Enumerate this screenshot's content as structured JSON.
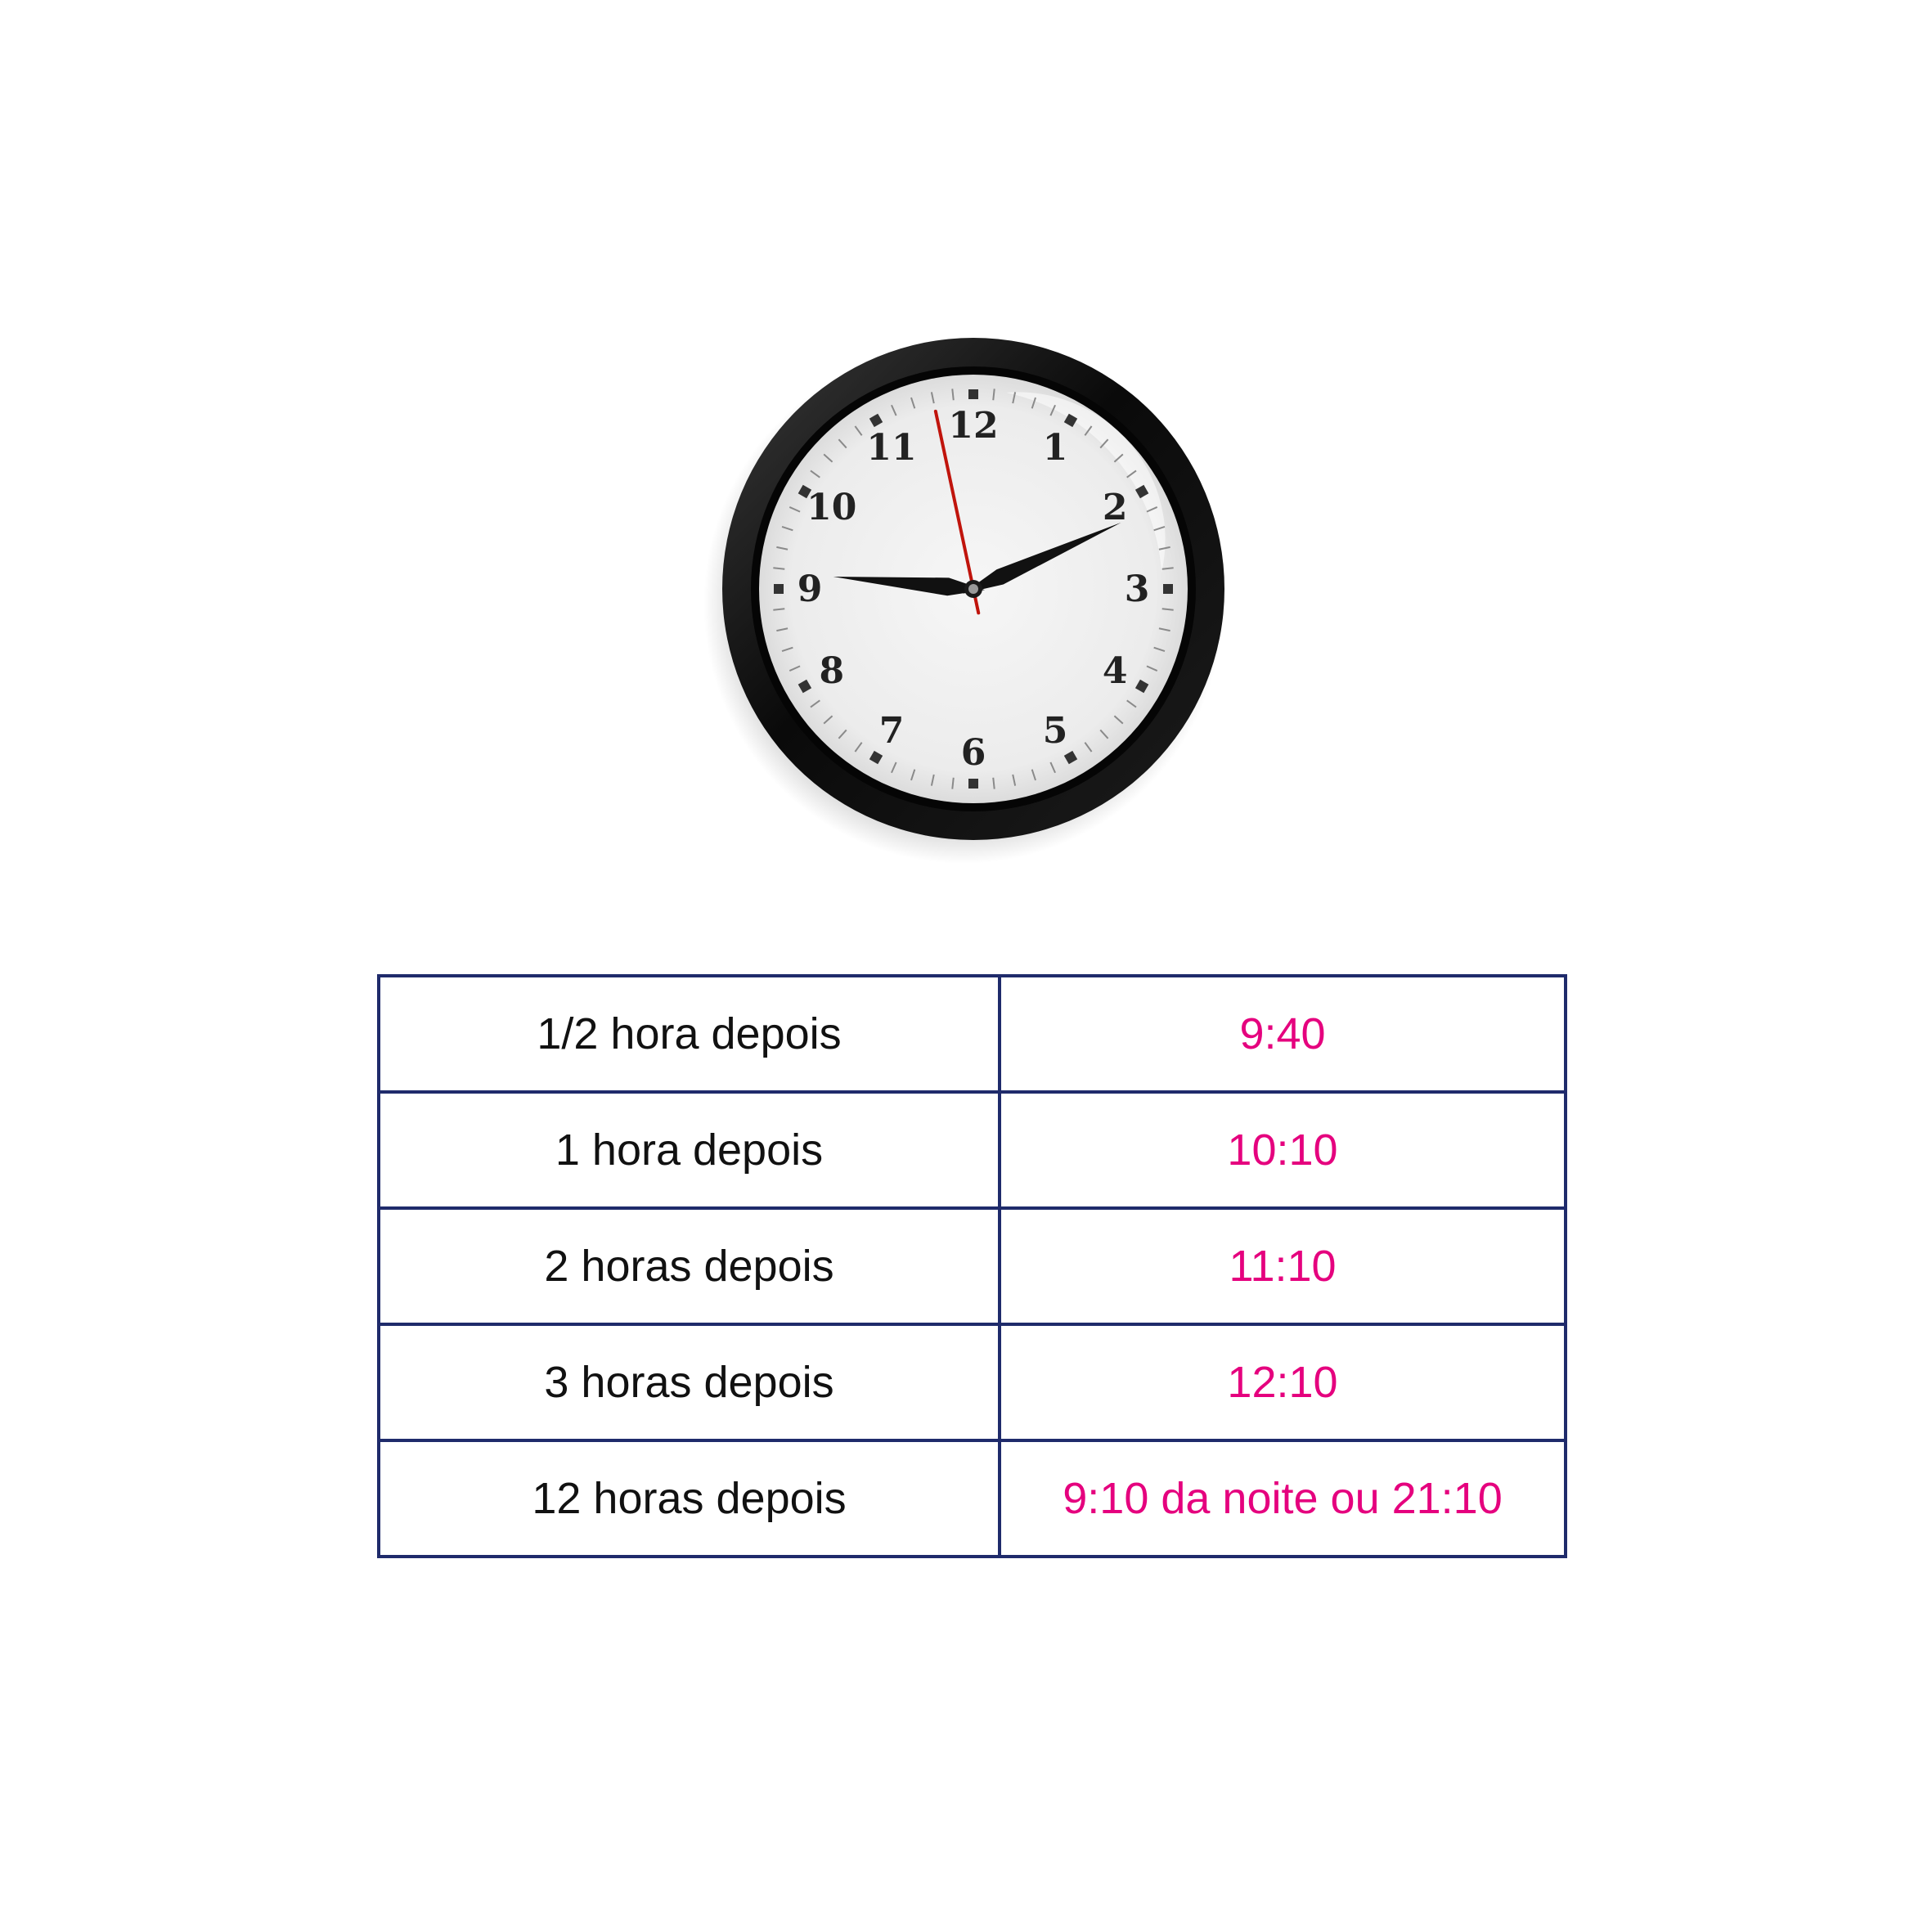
{
  "clock": {
    "hour": 9,
    "minute": 10,
    "second": 58,
    "numerals": [
      "12",
      "1",
      "2",
      "3",
      "4",
      "5",
      "6",
      "7",
      "8",
      "9",
      "10",
      "11"
    ],
    "colors": {
      "rim": "#111111",
      "face": "#efefef",
      "hands": "#111111",
      "second_hand": "#c0140c",
      "numerals": "#222222"
    }
  },
  "table": {
    "colors": {
      "border": "#1f2b6b",
      "label_text": "#111111",
      "value_text": "#e5007e"
    },
    "rows": [
      {
        "label": "1/2 hora depois",
        "value": "9:40"
      },
      {
        "label": "1 hora depois",
        "value": "10:10"
      },
      {
        "label": "2 horas depois",
        "value": "11:10"
      },
      {
        "label": "3 horas depois",
        "value": "12:10"
      },
      {
        "label": "12 horas depois",
        "value": "9:10 da noite ou 21:10"
      }
    ]
  }
}
